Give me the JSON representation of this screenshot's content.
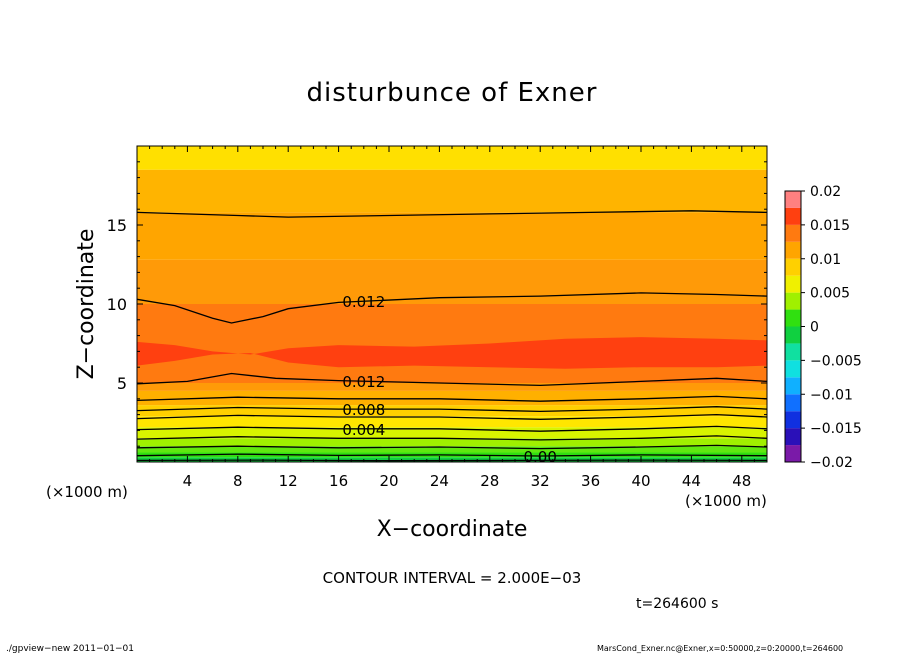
{
  "chart_data": {
    "type": "heatmap",
    "title": "disturbunce of Exner",
    "xlabel": "X−coordinate",
    "ylabel": "Z−coordinate",
    "x_unit": "(×1000 m)",
    "y_unit": "(×1000 m)",
    "xlim": [
      0,
      50
    ],
    "ylim": [
      0,
      20
    ],
    "xticks": [
      4,
      8,
      12,
      16,
      20,
      24,
      28,
      32,
      36,
      40,
      44,
      48
    ],
    "yticks": [
      5,
      10,
      15
    ],
    "contour_interval_label": "CONTOUR INTERVAL = 2.000E−03",
    "time_label": "t=264600 s",
    "footer_left": "./gpview−new   2011−01−01",
    "footer_right": "MarsCond_Exner.nc@Exner,x=0:50000,z=0:20000,t=264600",
    "colorbar": {
      "ticks": [
        "0.02",
        "0.015",
        "0.01",
        "0.005",
        "0",
        "−0.005",
        "−0.01",
        "−0.015",
        "−0.02"
      ],
      "levels": [
        -0.02,
        -0.0175,
        -0.015,
        -0.0125,
        -0.01,
        -0.0075,
        -0.005,
        -0.0025,
        0,
        0.0025,
        0.005,
        0.0075,
        0.01,
        0.0125,
        0.015,
        0.0175,
        0.02
      ],
      "colors": [
        "#7a1aa8",
        "#2a10b8",
        "#1030e0",
        "#1070ff",
        "#10b0ff",
        "#10e0e0",
        "#10e0a0",
        "#10d040",
        "#30e010",
        "#a0f000",
        "#f0f000",
        "#ffd000",
        "#ffa500",
        "#ff7a10",
        "#ff4010",
        "#ff8080"
      ]
    },
    "bands": [
      {
        "z": 0.3,
        "color": "#10d040"
      },
      {
        "z": 0.6,
        "color": "#30e010"
      },
      {
        "z": 1.0,
        "color": "#60e810"
      },
      {
        "z": 1.5,
        "color": "#a0f000"
      },
      {
        "z": 2.2,
        "color": "#d8f400"
      },
      {
        "z": 2.9,
        "color": "#ffe600"
      },
      {
        "z": 3.6,
        "color": "#ffd000"
      },
      {
        "z": 4.5,
        "color": "#ffb000"
      },
      {
        "z": 5.0,
        "color": "#ff9a08"
      },
      {
        "z": 7.5,
        "color": "#ff7a10"
      },
      {
        "z": 10.0,
        "color": "#ff7a10"
      },
      {
        "z": 12.8,
        "color": "#ff9a08"
      },
      {
        "z": 15.8,
        "color": "#ffa500"
      },
      {
        "z": 18.5,
        "color": "#ffb400"
      },
      {
        "z": 20.0,
        "color": "#ffe000"
      }
    ],
    "core": {
      "color": "#ff4010",
      "upper": [
        [
          0,
          7.6
        ],
        [
          3,
          7.4
        ],
        [
          6,
          7.0
        ],
        [
          9,
          6.8
        ],
        [
          12,
          7.2
        ],
        [
          16,
          7.4
        ],
        [
          22,
          7.3
        ],
        [
          28,
          7.5
        ],
        [
          34,
          7.8
        ],
        [
          40,
          7.9
        ],
        [
          46,
          7.8
        ],
        [
          50,
          7.7
        ]
      ],
      "lower": [
        [
          0,
          6.1
        ],
        [
          3,
          6.4
        ],
        [
          6,
          6.8
        ],
        [
          9,
          6.9
        ],
        [
          12,
          6.3
        ],
        [
          16,
          6.0
        ],
        [
          22,
          6.1
        ],
        [
          28,
          6.0
        ],
        [
          34,
          5.9
        ],
        [
          40,
          6.0
        ],
        [
          46,
          6.0
        ],
        [
          50,
          6.1
        ]
      ]
    },
    "contours": [
      {
        "points": [
          [
            0,
            0.1
          ],
          [
            10,
            0.12
          ],
          [
            20,
            0.08
          ],
          [
            30,
            0.1
          ],
          [
            40,
            0.12
          ],
          [
            50,
            0.1
          ]
        ],
        "label": ""
      },
      {
        "points": [
          [
            0,
            0.4
          ],
          [
            8,
            0.5
          ],
          [
            16,
            0.42
          ],
          [
            24,
            0.45
          ],
          [
            32,
            0.38
          ],
          [
            40,
            0.45
          ],
          [
            50,
            0.4
          ]
        ],
        "label": "0.00",
        "label_x": 32
      },
      {
        "points": [
          [
            0,
            0.9
          ],
          [
            8,
            1.0
          ],
          [
            16,
            0.9
          ],
          [
            24,
            0.95
          ],
          [
            32,
            0.85
          ],
          [
            40,
            0.95
          ],
          [
            46,
            1.05
          ],
          [
            50,
            0.95
          ]
        ],
        "label": ""
      },
      {
        "points": [
          [
            0,
            1.45
          ],
          [
            8,
            1.6
          ],
          [
            16,
            1.5
          ],
          [
            24,
            1.5
          ],
          [
            32,
            1.4
          ],
          [
            40,
            1.5
          ],
          [
            46,
            1.65
          ],
          [
            50,
            1.5
          ]
        ],
        "label": ""
      },
      {
        "points": [
          [
            0,
            2.05
          ],
          [
            8,
            2.2
          ],
          [
            16,
            2.1
          ],
          [
            24,
            2.1
          ],
          [
            32,
            1.95
          ],
          [
            40,
            2.1
          ],
          [
            46,
            2.25
          ],
          [
            50,
            2.1
          ]
        ],
        "label": "0.004",
        "label_x": 18
      },
      {
        "points": [
          [
            0,
            2.75
          ],
          [
            8,
            2.95
          ],
          [
            16,
            2.85
          ],
          [
            24,
            2.85
          ],
          [
            32,
            2.7
          ],
          [
            40,
            2.85
          ],
          [
            46,
            3.0
          ],
          [
            50,
            2.85
          ]
        ],
        "label": ""
      },
      {
        "points": [
          [
            0,
            3.25
          ],
          [
            8,
            3.45
          ],
          [
            16,
            3.35
          ],
          [
            24,
            3.35
          ],
          [
            32,
            3.2
          ],
          [
            40,
            3.35
          ],
          [
            46,
            3.5
          ],
          [
            50,
            3.35
          ]
        ],
        "label": "0.008",
        "label_x": 18
      },
      {
        "points": [
          [
            0,
            3.9
          ],
          [
            8,
            4.1
          ],
          [
            16,
            4.0
          ],
          [
            24,
            4.0
          ],
          [
            32,
            3.85
          ],
          [
            40,
            4.0
          ],
          [
            46,
            4.15
          ],
          [
            50,
            4.0
          ]
        ],
        "label": ""
      },
      {
        "points": [
          [
            0,
            4.95
          ],
          [
            4,
            5.1
          ],
          [
            7.5,
            5.6
          ],
          [
            11,
            5.3
          ],
          [
            16,
            5.15
          ],
          [
            24,
            5.0
          ],
          [
            32,
            4.85
          ],
          [
            40,
            5.1
          ],
          [
            46,
            5.3
          ],
          [
            50,
            5.1
          ]
        ],
        "label": "0.012",
        "label_x": 18
      },
      {
        "points": [
          [
            0,
            10.3
          ],
          [
            3,
            9.9
          ],
          [
            6,
            9.1
          ],
          [
            7.5,
            8.8
          ],
          [
            10,
            9.2
          ],
          [
            12,
            9.7
          ],
          [
            16,
            10.1
          ],
          [
            24,
            10.4
          ],
          [
            32,
            10.5
          ],
          [
            40,
            10.7
          ],
          [
            46,
            10.6
          ],
          [
            50,
            10.5
          ]
        ],
        "label": "0.012",
        "label_x": 18
      },
      {
        "points": [
          [
            0,
            15.8
          ],
          [
            8,
            15.6
          ],
          [
            12,
            15.5
          ],
          [
            20,
            15.6
          ],
          [
            28,
            15.7
          ],
          [
            36,
            15.8
          ],
          [
            44,
            15.9
          ],
          [
            50,
            15.8
          ]
        ],
        "label": ""
      }
    ]
  }
}
